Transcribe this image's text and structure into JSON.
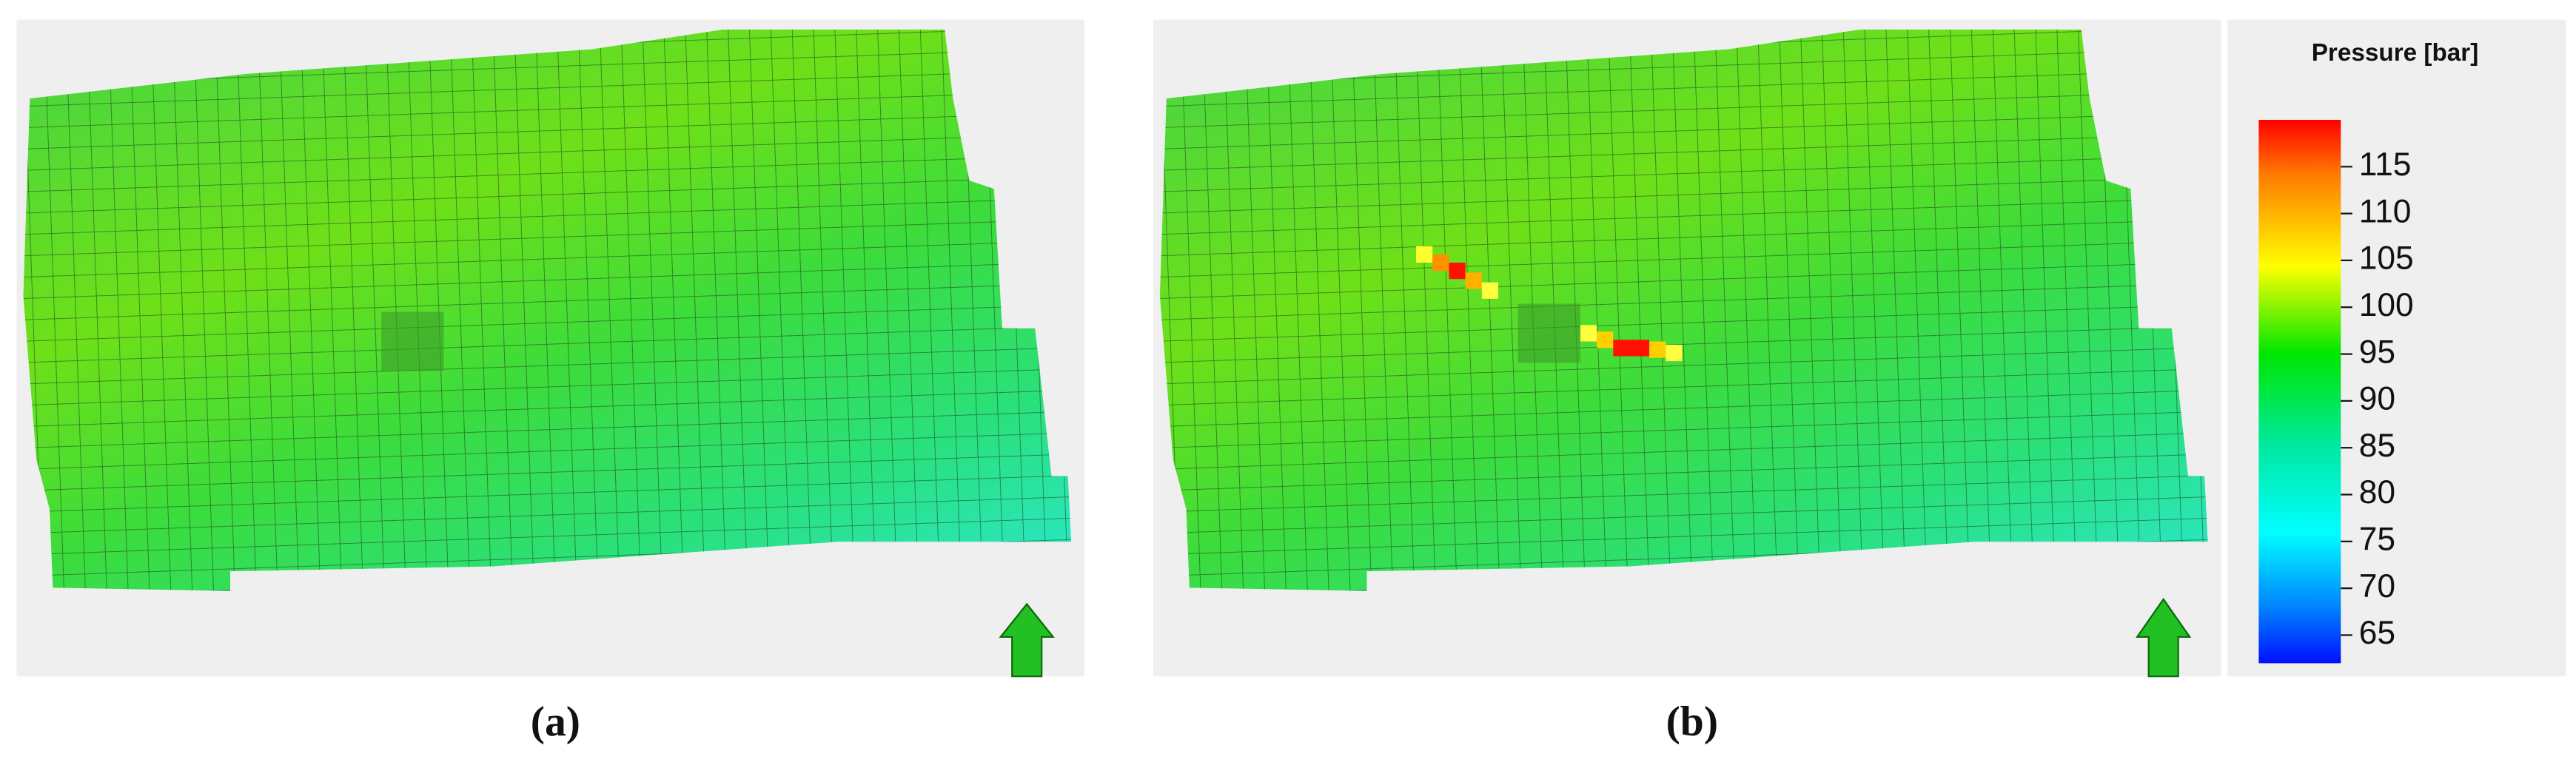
{
  "panels": [
    {
      "label": "(a)"
    },
    {
      "label": "(b)"
    }
  ],
  "colorbar": {
    "title": "Pressure [bar]",
    "range": [
      62,
      120
    ],
    "ticks": [
      65,
      70,
      75,
      80,
      85,
      90,
      95,
      100,
      105,
      110,
      115
    ]
  }
}
